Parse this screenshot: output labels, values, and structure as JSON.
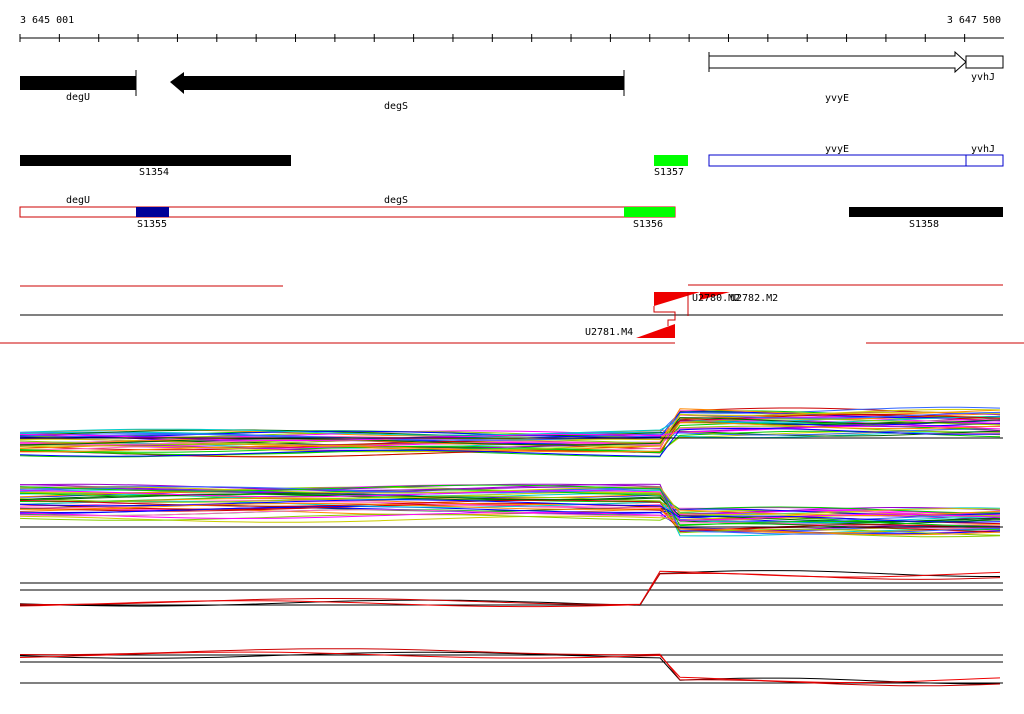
{
  "ruler": {
    "start": "3 645 001",
    "end": "3 647 500"
  },
  "genes": [
    {
      "label": "degU"
    },
    {
      "label": "degS"
    },
    {
      "label": "yvyE"
    },
    {
      "label": "yvhJ"
    }
  ],
  "segments_top": [
    {
      "label": "S1354"
    },
    {
      "label": "S1357"
    },
    {
      "label": "yvyE"
    },
    {
      "label": "yvhJ"
    }
  ],
  "segments_bottom": [
    {
      "label": "degU"
    },
    {
      "label": "degS"
    },
    {
      "label": "S1355"
    },
    {
      "label": "S1356"
    },
    {
      "label": "S1358"
    }
  ],
  "transcripts": [
    {
      "label": "U2780.M2"
    },
    {
      "label": "U2782.M2"
    },
    {
      "label": "U2781.M4"
    }
  ]
}
